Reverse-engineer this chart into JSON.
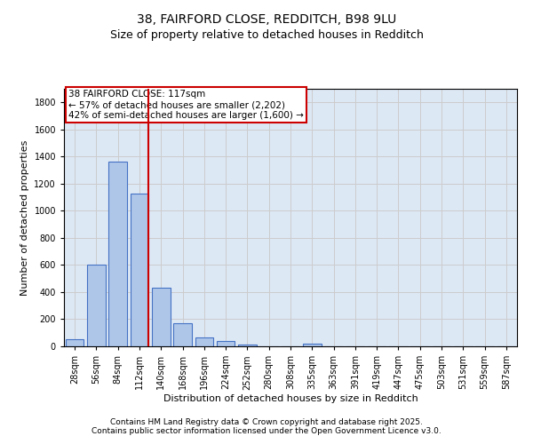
{
  "title_line1": "38, FAIRFORD CLOSE, REDDITCH, B98 9LU",
  "title_line2": "Size of property relative to detached houses in Redditch",
  "xlabel": "Distribution of detached houses by size in Redditch",
  "ylabel": "Number of detached properties",
  "bar_labels": [
    "28sqm",
    "56sqm",
    "84sqm",
    "112sqm",
    "140sqm",
    "168sqm",
    "196sqm",
    "224sqm",
    "252sqm",
    "280sqm",
    "308sqm",
    "335sqm",
    "363sqm",
    "391sqm",
    "419sqm",
    "447sqm",
    "475sqm",
    "503sqm",
    "531sqm",
    "559sqm",
    "587sqm"
  ],
  "bar_values": [
    55,
    605,
    1360,
    1125,
    430,
    170,
    65,
    40,
    15,
    0,
    0,
    20,
    0,
    0,
    0,
    0,
    0,
    0,
    0,
    0,
    0
  ],
  "bar_color": "#aec6e8",
  "bar_edge_color": "#4472c4",
  "ylim": [
    0,
    1900
  ],
  "yticks": [
    0,
    200,
    400,
    600,
    800,
    1000,
    1200,
    1400,
    1600,
    1800
  ],
  "vline_x": 3.43,
  "vline_color": "#cc0000",
  "annotation_box_text": "38 FAIRFORD CLOSE: 117sqm\n← 57% of detached houses are smaller (2,202)\n42% of semi-detached houses are larger (1,600) →",
  "annotation_box_color": "#cc0000",
  "grid_color": "#cccccc",
  "bg_color": "#dde8f5",
  "footer_line1": "Contains HM Land Registry data © Crown copyright and database right 2025.",
  "footer_line2": "Contains public sector information licensed under the Open Government Licence v3.0.",
  "title_fontsize": 10,
  "subtitle_fontsize": 9,
  "axis_label_fontsize": 8,
  "tick_fontsize": 7,
  "annotation_fontsize": 7.5,
  "footer_fontsize": 6.5
}
